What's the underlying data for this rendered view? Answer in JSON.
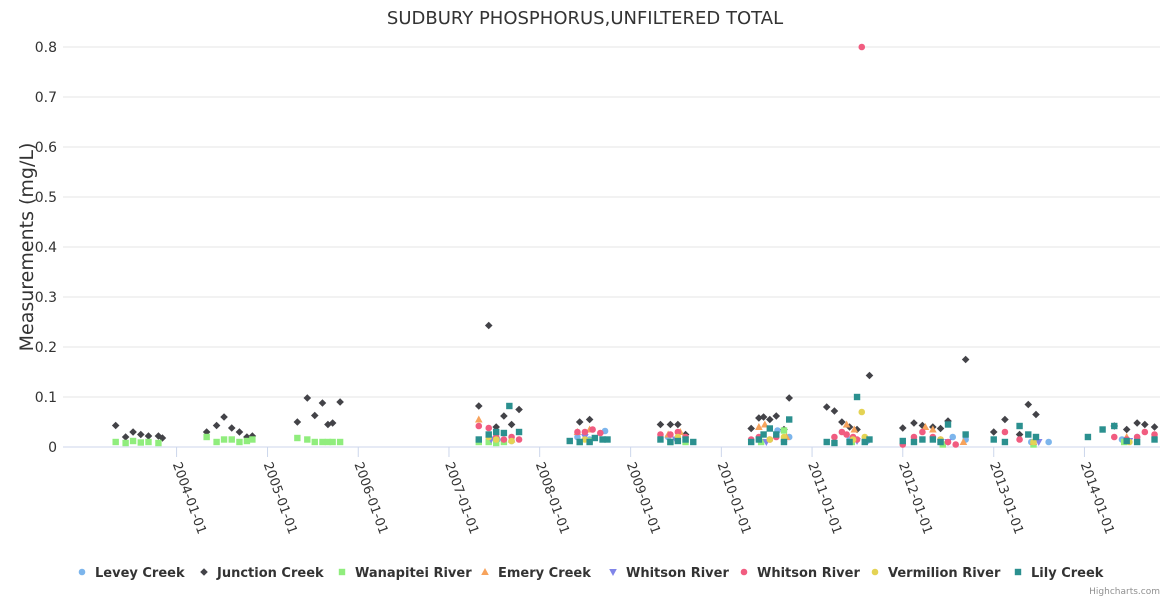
{
  "colors": {
    "levey": "#7cb5ec",
    "junction": "#434348",
    "wanapitei": "#90ed7d",
    "emery": "#f7a35c",
    "whitson1": "#8085e9",
    "whitson2": "#f15c80",
    "vermilion": "#e4d354",
    "lily": "#2b908f",
    "grid": "#e6e6e6",
    "axis": "#ccd6eb"
  },
  "credits": "Highcharts.com",
  "chart_data": {
    "type": "scatter",
    "title": "SUDBURY PHOSPHORUS,UNFILTERED TOTAL",
    "ylabel": "Measurements (mg/L)",
    "xlabel": "",
    "ylim": [
      0,
      0.8
    ],
    "yticks": [
      "0",
      "0.1",
      "0.2",
      "0.3",
      "0.4",
      "0.5",
      "0.6",
      "0.7",
      "0.8"
    ],
    "xlim": [
      "2002-10-01",
      "2014-11-01"
    ],
    "xticks": [
      "2004-01-01",
      "2005-01-01",
      "2006-01-01",
      "2007-01-01",
      "2008-01-01",
      "2009-01-01",
      "2010-01-01",
      "2011-01-01",
      "2012-01-01",
      "2013-01-01",
      "2014-01-01"
    ],
    "series": [
      {
        "name": "Levey Creek",
        "color": "#7cb5ec",
        "symbol": "circle",
        "points": [
          [
            "2007-06-10",
            0.02
          ],
          [
            "2007-07-15",
            0.015
          ],
          [
            "2007-09-10",
            0.012
          ],
          [
            "2008-06-01",
            0.02
          ],
          [
            "2008-07-20",
            0.015
          ],
          [
            "2008-09-20",
            0.032
          ],
          [
            "2009-06-01",
            0.02
          ],
          [
            "2009-08-10",
            0.02
          ],
          [
            "2010-06-01",
            0.015
          ],
          [
            "2010-08-15",
            0.033
          ],
          [
            "2010-10-01",
            0.02
          ],
          [
            "2011-06-01",
            0.015
          ],
          [
            "2011-08-10",
            0.012
          ],
          [
            "2012-06-01",
            0.01
          ],
          [
            "2012-07-20",
            0.02
          ],
          [
            "2012-09-10",
            0.015
          ],
          [
            "2013-06-01",
            0.01
          ],
          [
            "2013-08-10",
            0.01
          ],
          [
            "2014-06-01",
            0.015
          ],
          [
            "2014-08-01",
            0.02
          ]
        ]
      },
      {
        "name": "Junction Creek",
        "color": "#434348",
        "symbol": "diamond",
        "points": [
          [
            "2003-05-01",
            0.043
          ],
          [
            "2003-06-10",
            0.02
          ],
          [
            "2003-07-10",
            0.03
          ],
          [
            "2003-08-10",
            0.025
          ],
          [
            "2003-09-10",
            0.022
          ],
          [
            "2003-10-20",
            0.022
          ],
          [
            "2003-11-05",
            0.018
          ],
          [
            "2004-05-01",
            0.03
          ],
          [
            "2004-06-10",
            0.043
          ],
          [
            "2004-07-10",
            0.06
          ],
          [
            "2004-08-10",
            0.038
          ],
          [
            "2004-09-10",
            0.03
          ],
          [
            "2004-10-10",
            0.02
          ],
          [
            "2004-11-01",
            0.022
          ],
          [
            "2005-05-01",
            0.05
          ],
          [
            "2005-06-10",
            0.098
          ],
          [
            "2005-07-10",
            0.063
          ],
          [
            "2005-08-10",
            0.088
          ],
          [
            "2005-09-01",
            0.045
          ],
          [
            "2005-09-20",
            0.048
          ],
          [
            "2005-10-20",
            0.09
          ],
          [
            "2007-05-01",
            0.082
          ],
          [
            "2007-06-10",
            0.243
          ],
          [
            "2007-07-10",
            0.04
          ],
          [
            "2007-08-10",
            0.062
          ],
          [
            "2007-09-10",
            0.045
          ],
          [
            "2007-10-10",
            0.075
          ],
          [
            "2008-06-10",
            0.05
          ],
          [
            "2008-07-20",
            0.055
          ],
          [
            "2009-05-01",
            0.045
          ],
          [
            "2009-06-10",
            0.045
          ],
          [
            "2009-07-10",
            0.045
          ],
          [
            "2009-08-10",
            0.025
          ],
          [
            "2010-05-01",
            0.037
          ],
          [
            "2010-06-01",
            0.058
          ],
          [
            "2010-06-20",
            0.06
          ],
          [
            "2010-07-15",
            0.055
          ],
          [
            "2010-08-10",
            0.062
          ],
          [
            "2010-09-10",
            0.035
          ],
          [
            "2010-10-01",
            0.098
          ],
          [
            "2011-03-01",
            0.08
          ],
          [
            "2011-04-01",
            0.072
          ],
          [
            "2011-05-01",
            0.05
          ],
          [
            "2011-06-01",
            0.04
          ],
          [
            "2011-07-01",
            0.035
          ],
          [
            "2011-08-20",
            0.143
          ],
          [
            "2012-01-01",
            0.038
          ],
          [
            "2012-02-15",
            0.048
          ],
          [
            "2012-03-20",
            0.043
          ],
          [
            "2012-05-01",
            0.04
          ],
          [
            "2012-06-01",
            0.037
          ],
          [
            "2012-07-01",
            0.052
          ],
          [
            "2012-09-10",
            0.175
          ],
          [
            "2013-01-01",
            0.03
          ],
          [
            "2013-02-15",
            0.055
          ],
          [
            "2013-04-15",
            0.025
          ],
          [
            "2013-05-20",
            0.085
          ],
          [
            "2013-06-20",
            0.065
          ],
          [
            "2014-05-01",
            0.042
          ],
          [
            "2014-06-20",
            0.035
          ],
          [
            "2014-08-01",
            0.048
          ],
          [
            "2014-09-01",
            0.045
          ],
          [
            "2014-10-10",
            0.04
          ]
        ]
      },
      {
        "name": "Wanapitei River",
        "color": "#90ed7d",
        "symbol": "square",
        "points": [
          [
            "2003-05-01",
            0.01
          ],
          [
            "2003-06-10",
            0.008
          ],
          [
            "2003-07-10",
            0.012
          ],
          [
            "2003-08-10",
            0.009
          ],
          [
            "2003-09-10",
            0.01
          ],
          [
            "2003-10-20",
            0.008
          ],
          [
            "2004-05-01",
            0.02
          ],
          [
            "2004-06-10",
            0.01
          ],
          [
            "2004-07-10",
            0.015
          ],
          [
            "2004-08-10",
            0.015
          ],
          [
            "2004-09-10",
            0.01
          ],
          [
            "2004-10-10",
            0.012
          ],
          [
            "2004-11-01",
            0.015
          ],
          [
            "2005-05-01",
            0.018
          ],
          [
            "2005-06-10",
            0.015
          ],
          [
            "2005-07-10",
            0.01
          ],
          [
            "2005-08-10",
            0.01
          ],
          [
            "2005-09-01",
            0.01
          ],
          [
            "2005-09-20",
            0.01
          ],
          [
            "2005-10-20",
            0.01
          ],
          [
            "2007-05-01",
            0.01
          ],
          [
            "2007-06-10",
            0.01
          ],
          [
            "2007-07-10",
            0.008
          ],
          [
            "2007-08-10",
            0.01
          ],
          [
            "2008-06-10",
            0.01
          ],
          [
            "2008-07-20",
            0.012
          ],
          [
            "2009-06-10",
            0.01
          ],
          [
            "2009-08-10",
            0.01
          ],
          [
            "2010-06-10",
            0.01
          ],
          [
            "2010-09-10",
            0.033
          ],
          [
            "2011-06-10",
            0.01
          ],
          [
            "2012-06-10",
            0.005
          ],
          [
            "2013-06-10",
            0.005
          ],
          [
            "2014-06-10",
            0.01
          ]
        ]
      },
      {
        "name": "Emery Creek",
        "color": "#f7a35c",
        "symbol": "triangle",
        "points": [
          [
            "2007-05-01",
            0.055
          ],
          [
            "2007-07-10",
            0.02
          ],
          [
            "2007-09-10",
            0.015
          ],
          [
            "2008-06-01",
            0.03
          ],
          [
            "2008-07-20",
            0.035
          ],
          [
            "2009-06-01",
            0.025
          ],
          [
            "2009-07-20",
            0.03
          ],
          [
            "2010-06-01",
            0.04
          ],
          [
            "2010-06-25",
            0.045
          ],
          [
            "2010-09-20",
            0.02
          ],
          [
            "2011-05-20",
            0.045
          ],
          [
            "2011-06-20",
            0.035
          ],
          [
            "2012-04-01",
            0.04
          ],
          [
            "2012-05-01",
            0.035
          ],
          [
            "2012-09-01",
            0.01
          ],
          [
            "2013-06-10",
            0.01
          ],
          [
            "2014-06-20",
            0.02
          ]
        ]
      },
      {
        "name": "Whitson River",
        "color": "#8085e9",
        "symbol": "triangle-down",
        "points": [
          [
            "2007-06-20",
            0.015
          ],
          [
            "2008-07-01",
            0.02
          ],
          [
            "2009-07-01",
            0.015
          ],
          [
            "2010-07-01",
            0.01
          ],
          [
            "2011-07-01",
            0.012
          ],
          [
            "2012-07-01",
            0.01
          ],
          [
            "2013-07-01",
            0.01
          ],
          [
            "2014-07-01",
            0.012
          ]
        ]
      },
      {
        "name": "Whitson River",
        "color": "#f15c80",
        "symbol": "circle",
        "points": [
          [
            "2007-05-01",
            0.042
          ],
          [
            "2007-06-10",
            0.038
          ],
          [
            "2007-07-10",
            0.02
          ],
          [
            "2007-08-10",
            0.015
          ],
          [
            "2007-09-10",
            0.02
          ],
          [
            "2007-10-10",
            0.015
          ],
          [
            "2008-06-01",
            0.03
          ],
          [
            "2008-07-01",
            0.03
          ],
          [
            "2008-08-01",
            0.035
          ],
          [
            "2008-09-01",
            0.028
          ],
          [
            "2009-05-01",
            0.025
          ],
          [
            "2009-06-10",
            0.025
          ],
          [
            "2009-07-10",
            0.03
          ],
          [
            "2009-08-10",
            0.02
          ],
          [
            "2010-05-01",
            0.015
          ],
          [
            "2010-06-01",
            0.02
          ],
          [
            "2010-07-15",
            0.015
          ],
          [
            "2010-08-10",
            0.02
          ],
          [
            "2010-09-10",
            0.012
          ],
          [
            "2011-04-01",
            0.02
          ],
          [
            "2011-05-01",
            0.03
          ],
          [
            "2011-05-20",
            0.025
          ],
          [
            "2011-06-15",
            0.02
          ],
          [
            "2011-07-01",
            0.015
          ],
          [
            "2011-07-20",
            0.8
          ],
          [
            "2012-01-01",
            0.005
          ],
          [
            "2012-02-15",
            0.02
          ],
          [
            "2012-03-20",
            0.03
          ],
          [
            "2012-05-01",
            0.02
          ],
          [
            "2012-06-01",
            0.015
          ],
          [
            "2012-07-01",
            0.01
          ],
          [
            "2012-08-01",
            0.005
          ],
          [
            "2013-02-15",
            0.03
          ],
          [
            "2013-04-15",
            0.015
          ],
          [
            "2014-05-01",
            0.02
          ],
          [
            "2014-06-20",
            0.015
          ],
          [
            "2014-08-01",
            0.02
          ],
          [
            "2014-09-01",
            0.03
          ],
          [
            "2014-10-10",
            0.025
          ]
        ]
      },
      {
        "name": "Vermilion River",
        "color": "#e4d354",
        "symbol": "circle",
        "points": [
          [
            "2007-06-10",
            0.02
          ],
          [
            "2007-07-10",
            0.015
          ],
          [
            "2007-09-10",
            0.012
          ],
          [
            "2008-07-01",
            0.015
          ],
          [
            "2009-07-10",
            0.02
          ],
          [
            "2010-07-15",
            0.015
          ],
          [
            "2010-09-10",
            0.02
          ],
          [
            "2011-06-15",
            0.015
          ],
          [
            "2011-07-20",
            0.07
          ],
          [
            "2011-08-01",
            0.02
          ],
          [
            "2012-06-01",
            0.015
          ],
          [
            "2013-06-10",
            0.01
          ],
          [
            "2014-07-01",
            0.01
          ]
        ]
      },
      {
        "name": "Lily Creek",
        "color": "#2b908f",
        "symbol": "square",
        "points": [
          [
            "2007-05-01",
            0.015
          ],
          [
            "2007-06-10",
            0.025
          ],
          [
            "2007-07-10",
            0.03
          ],
          [
            "2007-08-10",
            0.028
          ],
          [
            "2007-09-01",
            0.082
          ],
          [
            "2007-10-10",
            0.03
          ],
          [
            "2008-05-01",
            0.012
          ],
          [
            "2008-06-10",
            0.01
          ],
          [
            "2008-07-20",
            0.01
          ],
          [
            "2008-08-10",
            0.018
          ],
          [
            "2008-09-10",
            0.015
          ],
          [
            "2008-09-30",
            0.015
          ],
          [
            "2009-05-01",
            0.015
          ],
          [
            "2009-06-10",
            0.01
          ],
          [
            "2009-07-10",
            0.012
          ],
          [
            "2009-08-10",
            0.015
          ],
          [
            "2009-09-10",
            0.01
          ],
          [
            "2010-05-01",
            0.01
          ],
          [
            "2010-06-01",
            0.015
          ],
          [
            "2010-06-20",
            0.025
          ],
          [
            "2010-07-15",
            0.037
          ],
          [
            "2010-08-10",
            0.025
          ],
          [
            "2010-09-10",
            0.01
          ],
          [
            "2010-10-01",
            0.055
          ],
          [
            "2011-03-01",
            0.01
          ],
          [
            "2011-04-01",
            0.008
          ],
          [
            "2011-06-01",
            0.01
          ],
          [
            "2011-07-01",
            0.1
          ],
          [
            "2011-08-01",
            0.01
          ],
          [
            "2011-08-20",
            0.015
          ],
          [
            "2012-01-01",
            0.012
          ],
          [
            "2012-02-15",
            0.01
          ],
          [
            "2012-03-20",
            0.015
          ],
          [
            "2012-05-01",
            0.015
          ],
          [
            "2012-06-01",
            0.01
          ],
          [
            "2012-07-01",
            0.045
          ],
          [
            "2012-09-10",
            0.025
          ],
          [
            "2013-01-01",
            0.015
          ],
          [
            "2013-02-15",
            0.01
          ],
          [
            "2013-04-15",
            0.042
          ],
          [
            "2013-05-20",
            0.025
          ],
          [
            "2013-06-20",
            0.02
          ],
          [
            "2014-01-15",
            0.02
          ],
          [
            "2014-03-15",
            0.035
          ],
          [
            "2014-05-01",
            0.042
          ],
          [
            "2014-06-20",
            0.012
          ],
          [
            "2014-08-01",
            0.01
          ],
          [
            "2014-10-10",
            0.015
          ]
        ]
      }
    ]
  }
}
